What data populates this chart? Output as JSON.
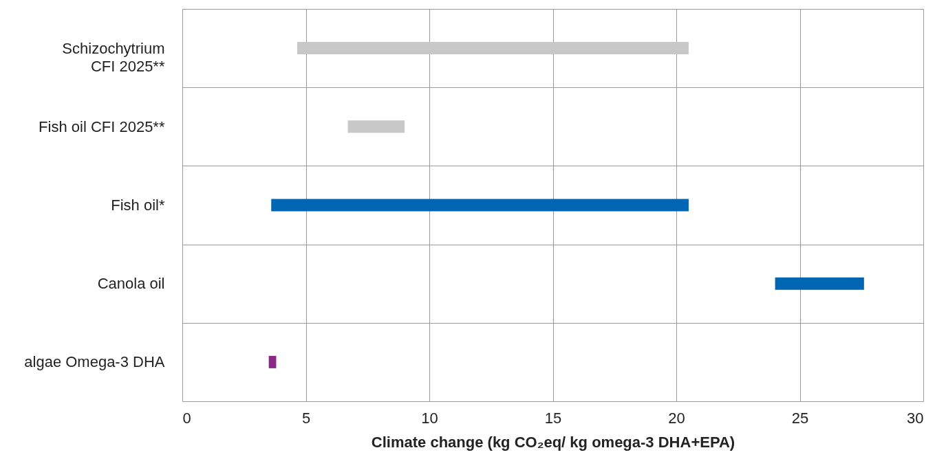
{
  "chart_data": {
    "type": "bar",
    "orientation": "horizontal",
    "categories": [
      "Schizochytrium\nCFI 2025**",
      "Fish oil CFI 2025**",
      "Fish oil*",
      "Canola oil",
      "algae Omega-3 DHA"
    ],
    "base": [
      4.65,
      6.7,
      3.6,
      24,
      3.5
    ],
    "values": [
      15.85,
      2.3,
      16.9,
      3.6,
      0.3
    ],
    "colors": [
      "#c8c8c8",
      "#c8c8c8",
      "#0066b3",
      "#0066b3",
      "#8b2a86"
    ],
    "xlim": [
      0,
      30
    ],
    "xticks": [
      0,
      5,
      10,
      15,
      20,
      25,
      30
    ],
    "xlabel": "Climate change (kg CO₂eq/ kg omega-3 DHA+EPA)",
    "grid": true
  }
}
